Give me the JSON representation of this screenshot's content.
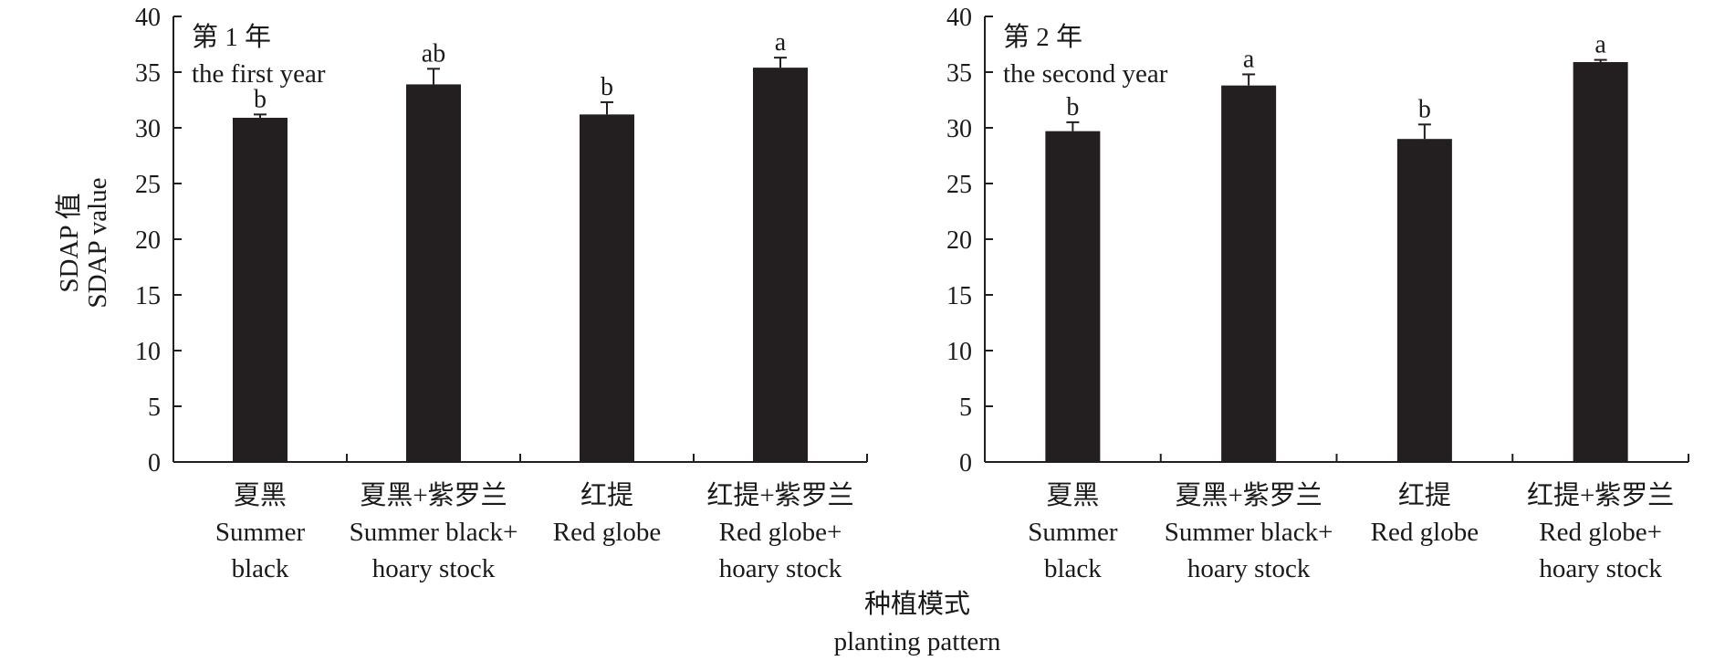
{
  "figure": {
    "ylabel_cn": "SDAP 值",
    "ylabel_en": "SDAP value",
    "xlabel_cn": "种植模式",
    "xlabel_en": "planting pattern"
  },
  "colors": {
    "bar": "#231f20",
    "axis": "#231f20",
    "text": "#1a1a1a"
  },
  "chart_data": [
    {
      "type": "bar",
      "panel_title_cn": "第 1 年",
      "panel_title_en": "the first year",
      "categories": [
        {
          "cn": "夏黑",
          "en": [
            "Summer",
            "black"
          ]
        },
        {
          "cn": "夏黑+紫罗兰",
          "en": [
            "Summer black+",
            "hoary stock"
          ]
        },
        {
          "cn": "红提",
          "en": [
            "Red globe"
          ]
        },
        {
          "cn": "红提+紫罗兰",
          "en": [
            "Red globe+",
            "hoary stock"
          ]
        }
      ],
      "values": [
        30.9,
        33.9,
        31.2,
        35.4
      ],
      "errors": [
        0.3,
        1.4,
        1.1,
        0.9
      ],
      "significance": [
        "b",
        "ab",
        "b",
        "a"
      ],
      "ylim": [
        0,
        40
      ],
      "yticks": [
        0,
        5,
        10,
        15,
        20,
        25,
        30,
        35,
        40
      ],
      "grid": false
    },
    {
      "type": "bar",
      "panel_title_cn": "第 2 年",
      "panel_title_en": "the second year",
      "categories": [
        {
          "cn": "夏黑",
          "en": [
            "Summer",
            "black"
          ]
        },
        {
          "cn": "夏黑+紫罗兰",
          "en": [
            "Summer black+",
            "hoary stock"
          ]
        },
        {
          "cn": "红提",
          "en": [
            "Red globe"
          ]
        },
        {
          "cn": "红提+紫罗兰",
          "en": [
            "Red globe+",
            "hoary stock"
          ]
        }
      ],
      "values": [
        29.7,
        33.8,
        29.0,
        35.9
      ],
      "errors": [
        0.8,
        1.0,
        1.3,
        0.2
      ],
      "significance": [
        "b",
        "a",
        "b",
        "a"
      ],
      "ylim": [
        0,
        40
      ],
      "yticks": [
        0,
        5,
        10,
        15,
        20,
        25,
        30,
        35,
        40
      ],
      "grid": false
    }
  ]
}
